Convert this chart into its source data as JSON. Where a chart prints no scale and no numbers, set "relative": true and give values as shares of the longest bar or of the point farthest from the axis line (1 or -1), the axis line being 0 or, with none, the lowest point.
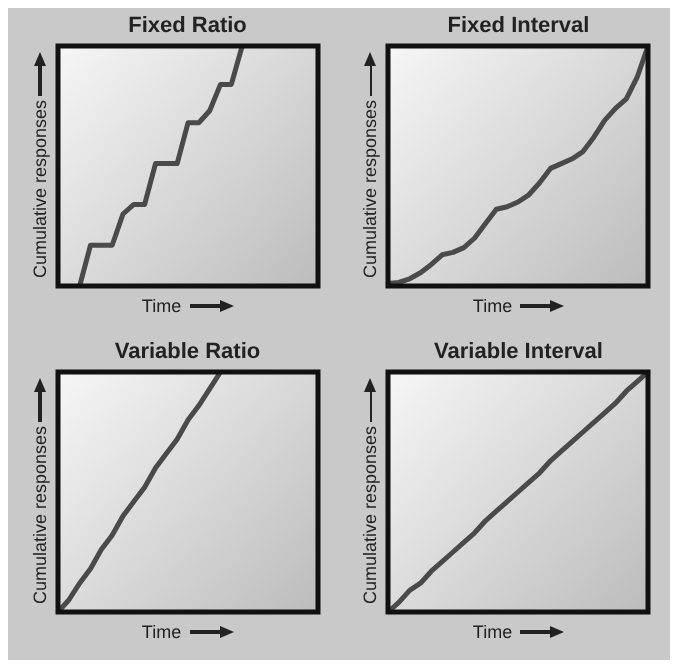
{
  "chart_data": [
    {
      "type": "line",
      "title": "Fixed Ratio",
      "xlabel": "Time",
      "ylabel": "Cumulative responses",
      "relative": true,
      "marker": "none",
      "categories": [
        null,
        null,
        null,
        null,
        null,
        null,
        null,
        null,
        null,
        null,
        null,
        null,
        null,
        null,
        null,
        null,
        null,
        null,
        null,
        null,
        null,
        null,
        null,
        null,
        null
      ],
      "series": [
        {
          "color": "#4a4a4a",
          "values": [
            null,
            null,
            0,
            0.17,
            0.17,
            0.17,
            0.3,
            0.34,
            0.34,
            0.51,
            0.51,
            0.51,
            0.68,
            0.68,
            0.73,
            0.84,
            0.84,
            1.0,
            null,
            null,
            null,
            null,
            null,
            null,
            null
          ]
        }
      ]
    },
    {
      "type": "line",
      "title": "Fixed Interval",
      "xlabel": "Time",
      "ylabel": "Cumulative responses",
      "relative": true,
      "marker": "none",
      "categories": [
        null,
        null,
        null,
        null,
        null,
        null,
        null,
        null,
        null,
        null,
        null,
        null,
        null,
        null,
        null,
        null,
        null,
        null,
        null,
        null,
        null,
        null,
        null,
        null,
        null
      ],
      "series": [
        {
          "color": "#4a4a4a",
          "values": [
            0.01,
            0.015,
            0.03,
            0.055,
            0.09,
            0.13,
            0.14,
            0.16,
            0.2,
            0.26,
            0.32,
            0.33,
            0.35,
            0.38,
            0.43,
            0.49,
            0.51,
            0.53,
            0.56,
            0.62,
            0.69,
            0.74,
            0.78,
            0.87,
            1.0
          ]
        }
      ]
    },
    {
      "type": "line",
      "title": "Variable Ratio",
      "xlabel": "Time",
      "ylabel": "Cumulative responses",
      "relative": true,
      "marker": "none",
      "categories": [
        null,
        null,
        null,
        null,
        null,
        null,
        null,
        null,
        null,
        null,
        null,
        null,
        null,
        null,
        null,
        null,
        null,
        null,
        null,
        null,
        null,
        null,
        null,
        null,
        null
      ],
      "series": [
        {
          "color": "#4a4a4a",
          "values": [
            0,
            0.05,
            0.12,
            0.18,
            0.26,
            0.32,
            0.4,
            0.46,
            0.52,
            0.6,
            0.66,
            0.72,
            0.8,
            0.86,
            0.93,
            1.0,
            null,
            null,
            null,
            null,
            null,
            null,
            null,
            null,
            null
          ]
        }
      ]
    },
    {
      "type": "line",
      "title": "Variable Interval",
      "xlabel": "Time",
      "ylabel": "Cumulative responses",
      "relative": true,
      "marker": "none",
      "categories": [
        null,
        null,
        null,
        null,
        null,
        null,
        null,
        null,
        null,
        null,
        null,
        null,
        null,
        null,
        null,
        null,
        null,
        null,
        null,
        null,
        null,
        null,
        null,
        null,
        null
      ],
      "series": [
        {
          "color": "#4a4a4a",
          "values": [
            0,
            0.04,
            0.09,
            0.12,
            0.17,
            0.21,
            0.25,
            0.29,
            0.33,
            0.38,
            0.42,
            0.46,
            0.5,
            0.54,
            0.58,
            0.63,
            0.67,
            0.71,
            0.75,
            0.79,
            0.83,
            0.87,
            0.92,
            0.96,
            1.0
          ]
        }
      ]
    }
  ]
}
